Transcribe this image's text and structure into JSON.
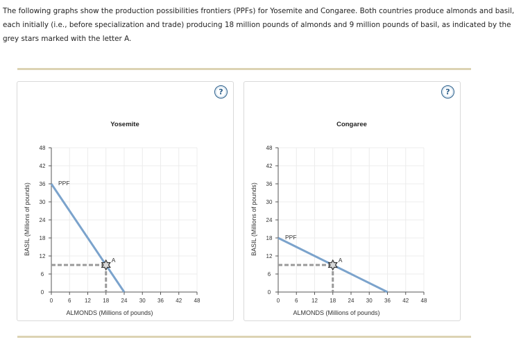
{
  "intro_text": "The following graphs show the production possibilities frontiers (PPFs) for Yosemite and Congaree. Both countries produce almonds and basil, each initially (i.e., before specialization and trade) producing 18 million pounds of almonds and 9 million pounds of basil, as indicated by the grey stars marked with the letter A.",
  "help_icon": "?",
  "colors": {
    "ppf": "#7ba3cc",
    "guide": "#999999",
    "rule": "#dcd3b3",
    "help": "#2c5f8a"
  },
  "chart_data": [
    {
      "type": "line",
      "title": "Yosemite",
      "xlabel": "ALMONDS (Millions of pounds)",
      "ylabel": "BASIL (Millions of pounds)",
      "xlim": [
        0,
        48
      ],
      "ylim": [
        0,
        48
      ],
      "xticks": [
        0,
        6,
        12,
        18,
        24,
        30,
        36,
        42,
        48
      ],
      "yticks": [
        0,
        6,
        12,
        18,
        24,
        30,
        36,
        42,
        48
      ],
      "grid": true,
      "series": [
        {
          "name": "PPF",
          "x": [
            0,
            24
          ],
          "y": [
            36,
            0
          ]
        }
      ],
      "points": [
        {
          "label": "A",
          "x": 18,
          "y": 9
        }
      ]
    },
    {
      "type": "line",
      "title": "Congaree",
      "xlabel": "ALMONDS (Millions of pounds)",
      "ylabel": "BASIL (Millions of pounds)",
      "xlim": [
        0,
        48
      ],
      "ylim": [
        0,
        48
      ],
      "xticks": [
        0,
        6,
        12,
        18,
        24,
        30,
        36,
        42,
        48
      ],
      "yticks": [
        0,
        6,
        12,
        18,
        24,
        30,
        36,
        42,
        48
      ],
      "grid": true,
      "series": [
        {
          "name": "PPF",
          "x": [
            0,
            36
          ],
          "y": [
            18,
            0
          ]
        }
      ],
      "points": [
        {
          "label": "A",
          "x": 18,
          "y": 9
        }
      ]
    }
  ]
}
